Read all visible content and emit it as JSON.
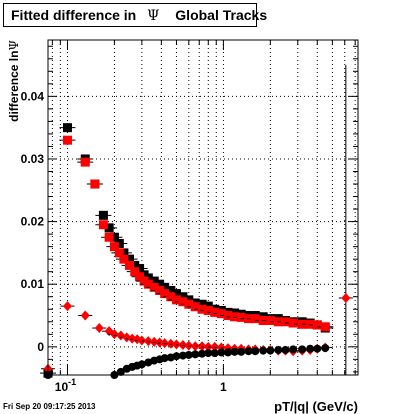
{
  "header": {
    "title_prefix": "Fitted difference in",
    "title_symbol": "Ψ",
    "title_suffix": "Global Tracks"
  },
  "footer": {
    "timestamp": "Fri Sep 20 09:17:25 2013"
  },
  "chart_data": {
    "type": "scatter",
    "x_scale": "log",
    "xlim": [
      0.075,
      7.3
    ],
    "ylim": [
      -0.0045,
      0.049
    ],
    "grid": true,
    "xlabel": "pT/|q| (GeV/c)",
    "ylabel": "difference ln",
    "ylabel_symbol": "Ψ",
    "x_tick_labels": [
      {
        "value": 0.1,
        "label": "10",
        "exp": "-1"
      },
      {
        "value": 1,
        "label": "1",
        "exp": ""
      }
    ],
    "y_ticks": [
      {
        "value": 0,
        "label": "0"
      },
      {
        "value": 0.01,
        "label": "0.01"
      },
      {
        "value": 0.02,
        "label": "0.02"
      },
      {
        "value": 0.03,
        "label": "0.03"
      },
      {
        "value": 0.04,
        "label": "0.04"
      }
    ],
    "colors": {
      "black_series": "#000000",
      "red_series": "#ff0000"
    },
    "series": [
      {
        "marker": "square",
        "color": "#000000",
        "points": [
          [
            0.075,
            -0.0042
          ],
          [
            0.1,
            0.035
          ],
          [
            0.13,
            0.03
          ],
          [
            0.15,
            0.026
          ],
          [
            0.17,
            0.021
          ],
          [
            0.185,
            0.019
          ],
          [
            0.2,
            0.0175
          ],
          [
            0.215,
            0.0165
          ],
          [
            0.23,
            0.015
          ],
          [
            0.25,
            0.014
          ],
          [
            0.27,
            0.013
          ],
          [
            0.29,
            0.0125
          ],
          [
            0.31,
            0.0115
          ],
          [
            0.33,
            0.011
          ],
          [
            0.36,
            0.0105
          ],
          [
            0.39,
            0.01
          ],
          [
            0.42,
            0.0095
          ],
          [
            0.46,
            0.009
          ],
          [
            0.5,
            0.0085
          ],
          [
            0.55,
            0.008
          ],
          [
            0.6,
            0.0075
          ],
          [
            0.66,
            0.007
          ],
          [
            0.73,
            0.0068
          ],
          [
            0.8,
            0.0065
          ],
          [
            0.88,
            0.006
          ],
          [
            0.97,
            0.0058
          ],
          [
            1.07,
            0.0055
          ],
          [
            1.18,
            0.0054
          ],
          [
            1.3,
            0.0052
          ],
          [
            1.45,
            0.005
          ],
          [
            1.6,
            0.005
          ],
          [
            1.8,
            0.0048
          ],
          [
            2.0,
            0.0045
          ],
          [
            2.25,
            0.0045
          ],
          [
            2.5,
            0.0042
          ],
          [
            2.8,
            0.004
          ],
          [
            3.2,
            0.004
          ],
          [
            3.6,
            0.0038
          ],
          [
            4.0,
            0.0035
          ],
          [
            4.5,
            0.003
          ]
        ]
      },
      {
        "marker": "square",
        "color": "#ff0000",
        "points": [
          [
            0.1,
            0.033
          ],
          [
            0.13,
            0.0295
          ],
          [
            0.15,
            0.026
          ],
          [
            0.17,
            0.0195
          ],
          [
            0.185,
            0.0175
          ],
          [
            0.2,
            0.016
          ],
          [
            0.215,
            0.015
          ],
          [
            0.23,
            0.014
          ],
          [
            0.25,
            0.013
          ],
          [
            0.27,
            0.012
          ],
          [
            0.29,
            0.0112
          ],
          [
            0.31,
            0.0105
          ],
          [
            0.33,
            0.01
          ],
          [
            0.36,
            0.0095
          ],
          [
            0.39,
            0.009
          ],
          [
            0.42,
            0.0085
          ],
          [
            0.46,
            0.008
          ],
          [
            0.5,
            0.0075
          ],
          [
            0.55,
            0.0072
          ],
          [
            0.6,
            0.0068
          ],
          [
            0.66,
            0.0064
          ],
          [
            0.73,
            0.006
          ],
          [
            0.8,
            0.0058
          ],
          [
            0.88,
            0.0055
          ],
          [
            0.97,
            0.0053
          ],
          [
            1.07,
            0.005
          ],
          [
            1.18,
            0.0048
          ],
          [
            1.3,
            0.0047
          ],
          [
            1.45,
            0.0045
          ],
          [
            1.6,
            0.0045
          ],
          [
            1.8,
            0.0042
          ],
          [
            2.0,
            0.0042
          ],
          [
            2.25,
            0.004
          ],
          [
            2.5,
            0.004
          ],
          [
            2.8,
            0.0038
          ],
          [
            3.2,
            0.0036
          ],
          [
            3.6,
            0.0036
          ],
          [
            4.0,
            0.0035
          ],
          [
            4.5,
            0.0032
          ]
        ]
      },
      {
        "marker": "diamond",
        "color": "#ff0000",
        "points": [
          [
            0.075,
            -0.0035
          ],
          [
            0.1,
            0.0065
          ],
          [
            0.13,
            0.005
          ],
          [
            0.16,
            0.003
          ],
          [
            0.185,
            0.0025
          ],
          [
            0.2,
            0.002
          ],
          [
            0.22,
            0.0018
          ],
          [
            0.24,
            0.0015
          ],
          [
            0.26,
            0.0013
          ],
          [
            0.28,
            0.0012
          ],
          [
            0.3,
            0.001
          ],
          [
            0.33,
            0.0009
          ],
          [
            0.36,
            0.0008
          ],
          [
            0.39,
            0.0007
          ],
          [
            0.42,
            0.0006
          ],
          [
            0.46,
            0.0005
          ],
          [
            0.5,
            0.0004
          ],
          [
            0.55,
            0.0003
          ],
          [
            0.6,
            0.0002
          ],
          [
            0.66,
            0.0001
          ],
          [
            0.73,
            0.0001
          ],
          [
            0.8,
            0.0
          ],
          [
            0.88,
            0.0
          ],
          [
            0.97,
            -0.0001
          ],
          [
            1.07,
            -0.0002
          ],
          [
            1.18,
            -0.0003
          ],
          [
            1.3,
            -0.0003
          ],
          [
            1.45,
            -0.0004
          ],
          [
            1.6,
            -0.0004
          ],
          [
            1.8,
            -0.0005
          ],
          [
            2.0,
            -0.0005
          ],
          [
            2.25,
            -0.0006
          ],
          [
            2.5,
            -0.0006
          ],
          [
            2.8,
            -0.0007
          ],
          [
            3.2,
            -0.0006
          ],
          [
            3.6,
            -0.0005
          ],
          [
            4.0,
            -0.0003
          ],
          [
            4.5,
            -0.0001
          ],
          [
            6.1,
            0.0078
          ]
        ]
      },
      {
        "marker": "circle",
        "color": "#000000",
        "points": [
          [
            0.075,
            -0.0045
          ],
          [
            0.2,
            -0.0045
          ],
          [
            0.22,
            -0.004
          ],
          [
            0.24,
            -0.0035
          ],
          [
            0.26,
            -0.0032
          ],
          [
            0.28,
            -0.003
          ],
          [
            0.3,
            -0.0028
          ],
          [
            0.33,
            -0.0025
          ],
          [
            0.36,
            -0.0022
          ],
          [
            0.39,
            -0.002
          ],
          [
            0.42,
            -0.0018
          ],
          [
            0.46,
            -0.0017
          ],
          [
            0.5,
            -0.0015
          ],
          [
            0.55,
            -0.0014
          ],
          [
            0.6,
            -0.0013
          ],
          [
            0.66,
            -0.0012
          ],
          [
            0.73,
            -0.0011
          ],
          [
            0.8,
            -0.001
          ],
          [
            0.88,
            -0.001
          ],
          [
            0.97,
            -0.0009
          ],
          [
            1.07,
            -0.0009
          ],
          [
            1.18,
            -0.0008
          ],
          [
            1.3,
            -0.0008
          ],
          [
            1.45,
            -0.0007
          ],
          [
            1.6,
            -0.0007
          ],
          [
            1.8,
            -0.0006
          ],
          [
            2.0,
            -0.0006
          ],
          [
            2.25,
            -0.0005
          ],
          [
            2.5,
            -0.0005
          ],
          [
            2.8,
            -0.0004
          ],
          [
            3.2,
            -0.0004
          ],
          [
            3.6,
            -0.0003
          ],
          [
            4.0,
            -0.0003
          ],
          [
            4.5,
            -0.0002
          ]
        ]
      }
    ],
    "error_bar": {
      "x": 6.1,
      "y_low": -0.0045,
      "y_high": 0.045
    }
  }
}
